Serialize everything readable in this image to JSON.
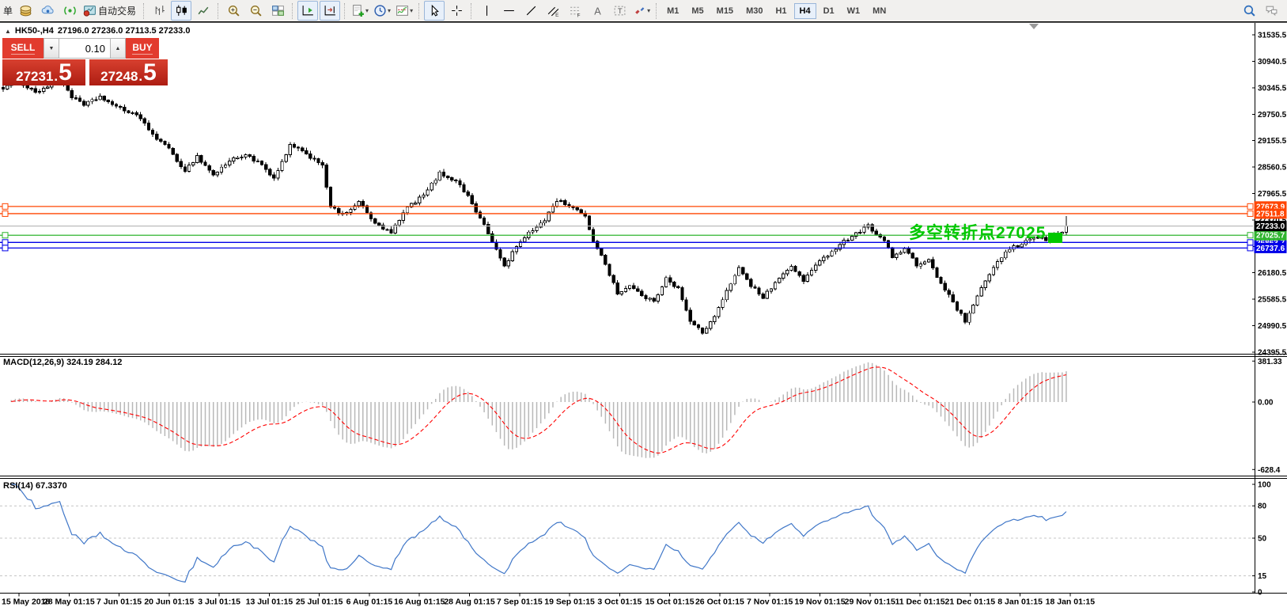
{
  "toolbar": {
    "left_text": "单",
    "autotrade_label": "自动交易",
    "icons": [
      "new-order-gold-icon",
      "cloud-community-icon",
      "signals-icon",
      "autotrade-icon",
      "bar-chart-icon",
      "candlestick-chart-icon",
      "line-chart-icon",
      "zoom-in-icon",
      "zoom-out-icon",
      "tile-windows-icon",
      "autoscroll-icon",
      "chart-shift-icon",
      "new-chart-icon",
      "timeframe-clock-icon",
      "indicators-icon",
      "cursor-icon",
      "crosshair-icon",
      "vertical-line-icon",
      "horizontal-line-icon",
      "trendline-icon",
      "channel-icon",
      "fibonacci-icon",
      "text-icon",
      "text-label-icon",
      "arrows-icon",
      "search-icon",
      "chat-icon"
    ],
    "timeframes": [
      "M1",
      "M5",
      "M15",
      "M30",
      "H1",
      "H4",
      "D1",
      "W1",
      "MN"
    ],
    "active_timeframe": "H4"
  },
  "chart": {
    "title": {
      "collapse_glyph": "▲",
      "symbol": "HK50-,H4",
      "ohlc": "27196.0 27236.0 27113.5 27233.0"
    },
    "trade_panel": {
      "sell_label": "SELL",
      "buy_label": "BUY",
      "volume_value": "0.10",
      "sell_price": {
        "main": "27231",
        "dot": ".",
        "big": "5"
      },
      "buy_price": {
        "main": "27248",
        "dot": ".",
        "big": "5"
      }
    },
    "annotation": {
      "text": "多空转折点27025",
      "color": "#00C800"
    }
  },
  "indicators": {
    "macd_label": "MACD(12,26,9) 324.19 284.12",
    "rsi_label": "RSI(14) 67.3370"
  },
  "chart_data": {
    "type": "candlestick",
    "symbol": "HK50",
    "timeframe": "H4",
    "candle_count": 264,
    "visible_price_range": [
      24375,
      31805
    ],
    "price_axis_ticks": [
      31535.5,
      30940.5,
      30345.5,
      29750.5,
      29155.5,
      28560.5,
      27965.5,
      27370.5,
      26775.5,
      26180.5,
      25585.5,
      24990.5,
      24395.5
    ],
    "close_anchors": [
      [
        0,
        30350
      ],
      [
        4,
        30480
      ],
      [
        8,
        30250
      ],
      [
        12,
        30420
      ],
      [
        14,
        30560
      ],
      [
        17,
        30150
      ],
      [
        20,
        29950
      ],
      [
        24,
        30150
      ],
      [
        28,
        29900
      ],
      [
        33,
        29750
      ],
      [
        36,
        29400
      ],
      [
        41,
        28950
      ],
      [
        45,
        28480
      ],
      [
        48,
        28800
      ],
      [
        52,
        28380
      ],
      [
        56,
        28700
      ],
      [
        60,
        28850
      ],
      [
        64,
        28600
      ],
      [
        67,
        28280
      ],
      [
        71,
        29050
      ],
      [
        75,
        28850
      ],
      [
        79,
        28620
      ],
      [
        81,
        27650
      ],
      [
        84,
        27480
      ],
      [
        88,
        27780
      ],
      [
        92,
        27280
      ],
      [
        96,
        27080
      ],
      [
        100,
        27650
      ],
      [
        104,
        27920
      ],
      [
        108,
        28420
      ],
      [
        112,
        28260
      ],
      [
        115,
        27900
      ],
      [
        118,
        27420
      ],
      [
        121,
        26880
      ],
      [
        124,
        26330
      ],
      [
        127,
        26780
      ],
      [
        130,
        27060
      ],
      [
        134,
        27380
      ],
      [
        137,
        27820
      ],
      [
        141,
        27660
      ],
      [
        144,
        27420
      ],
      [
        146,
        26920
      ],
      [
        149,
        26380
      ],
      [
        152,
        25720
      ],
      [
        155,
        25880
      ],
      [
        158,
        25680
      ],
      [
        161,
        25520
      ],
      [
        164,
        26080
      ],
      [
        167,
        25820
      ],
      [
        170,
        25080
      ],
      [
        173,
        24840
      ],
      [
        176,
        25180
      ],
      [
        179,
        25760
      ],
      [
        182,
        26320
      ],
      [
        185,
        25900
      ],
      [
        188,
        25620
      ],
      [
        191,
        25960
      ],
      [
        195,
        26320
      ],
      [
        198,
        26020
      ],
      [
        203,
        26520
      ],
      [
        207,
        26820
      ],
      [
        211,
        27080
      ],
      [
        214,
        27230
      ],
      [
        218,
        26920
      ],
      [
        220,
        26520
      ],
      [
        223,
        26720
      ],
      [
        226,
        26350
      ],
      [
        229,
        26470
      ],
      [
        232,
        25920
      ],
      [
        235,
        25520
      ],
      [
        238,
        25080
      ],
      [
        240,
        25420
      ],
      [
        243,
        26020
      ],
      [
        246,
        26420
      ],
      [
        249,
        26720
      ],
      [
        252,
        26820
      ],
      [
        255,
        27020
      ],
      [
        258,
        26920
      ],
      [
        261,
        27080
      ],
      [
        263,
        27233
      ]
    ],
    "last_close": 27233.0,
    "hlines": [
      {
        "price": 27673.9,
        "color": "#FF4500"
      },
      {
        "price": 27511.8,
        "color": "#FF4500"
      },
      {
        "price": 27025.7,
        "color": "#2FB52F"
      },
      {
        "price": 26863.7,
        "color": "#0000E8"
      },
      {
        "price": 26737.6,
        "color": "#0000E8"
      }
    ],
    "current_price": {
      "value": 27233.0,
      "line_color": "#BBBBBB",
      "badge_color": "#000000"
    },
    "macd": {
      "params": [
        12,
        26,
        9
      ],
      "value": 324.19,
      "signal_value": 284.12,
      "axis_max": 381.33,
      "axis_zero": 0.0,
      "axis_min": -628.4,
      "histogram_color": "#B8B8B8",
      "signal_color": "#FF0000",
      "signal_style": "dashed"
    },
    "rsi": {
      "period": 14,
      "value": 67.337,
      "axis": [
        100,
        80,
        50,
        15,
        0
      ],
      "levels": [
        80,
        50,
        15
      ],
      "line_color": "#4077C8"
    },
    "time_axis_labels": [
      "15 May 2018",
      "28 May 01:15",
      "7 Jun 01:15",
      "20 Jun 01:15",
      "3 Jul 01:15",
      "13 Jul 01:15",
      "25 Jul 01:15",
      "6 Aug 01:15",
      "16 Aug 01:15",
      "28 Aug 01:15",
      "7 Sep 01:15",
      "19 Sep 01:15",
      "3 Oct 01:15",
      "15 Oct 01:15",
      "26 Oct 01:15",
      "7 Nov 01:15",
      "19 Nov 01:15",
      "29 Nov 01:15",
      "11 Dec 01:15",
      "21 Dec 01:15",
      "8 Jan 01:15",
      "18 Jan 01:15"
    ],
    "annotation_price_level": 27025
  }
}
